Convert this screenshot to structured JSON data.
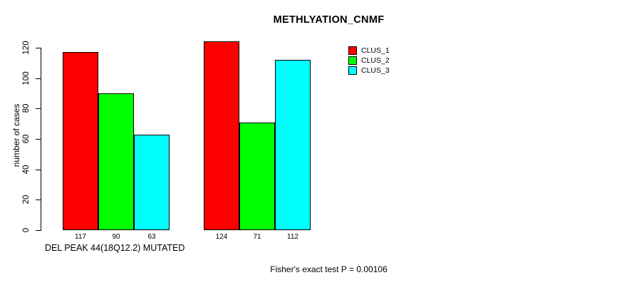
{
  "title": "METHLYATION_CNMF",
  "footer": "Fisher's exact test P = 0.00106",
  "chart_data": {
    "type": "bar",
    "title": "METHLYATION_CNMF",
    "xlabel": "DEL PEAK 44(18Q12.2) MUTATED",
    "ylabel": "number of cases",
    "ylim": [
      0,
      120
    ],
    "yticks": [
      0,
      20,
      40,
      60,
      80,
      100,
      120
    ],
    "grid": false,
    "categories": [
      "",
      ""
    ],
    "series": [
      {
        "name": "CLUS_1",
        "color": "#ff0000",
        "values": [
          117,
          124
        ]
      },
      {
        "name": "CLUS_2",
        "color": "#00ff00",
        "values": [
          90,
          71
        ]
      },
      {
        "name": "CLUS_3",
        "color": "#00ffff",
        "values": [
          63,
          112
        ]
      }
    ],
    "bar_value_labels": [
      [
        117,
        90,
        63
      ],
      [
        124,
        71,
        112
      ]
    ],
    "legend": [
      "CLUS_1",
      "CLUS_2",
      "CLUS_3"
    ],
    "legend_position": "top-right",
    "bar_border_color": "#000000",
    "annotation": "Fisher's exact test P = 0.00106"
  }
}
